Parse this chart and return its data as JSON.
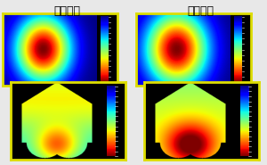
{
  "title_left": "点蒸発源",
  "title_right": "面蒸発源",
  "title_fontsize": 9,
  "frame_color": "#dddd00",
  "bg_color": "#000000",
  "page_bg": "#e8e8e8",
  "cmap": "jet"
}
